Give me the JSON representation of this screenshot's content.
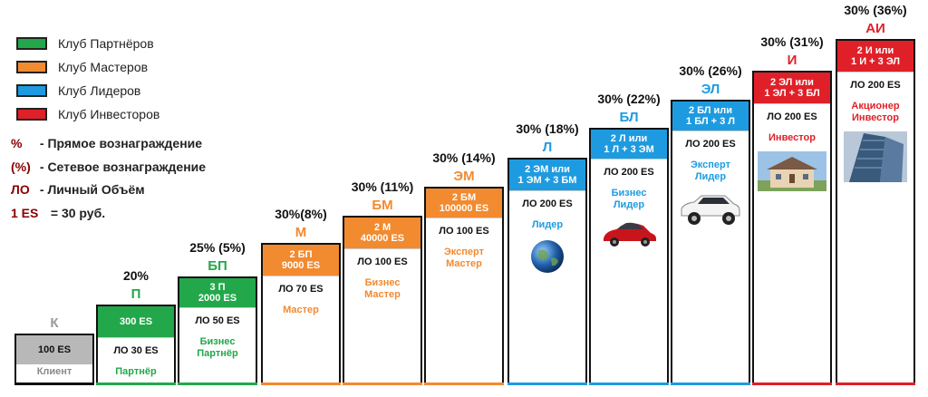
{
  "legend": [
    {
      "label": "Клуб Партнёров",
      "color": "#22a84a"
    },
    {
      "label": "Клуб Мастеров",
      "color": "#f28a30"
    },
    {
      "label": "Клуб Лидеров",
      "color": "#1e9be0"
    },
    {
      "label": "Клуб Инвесторов",
      "color": "#e02028"
    }
  ],
  "definitions": [
    {
      "symbol": "%",
      "text": "- Прямое вознаграждение"
    },
    {
      "symbol": "(%)",
      "text": "- Сетевое вознаграждение"
    },
    {
      "symbol": "ЛО",
      "text": "- Личный Объём"
    },
    {
      "symbol": "1 ES",
      "text": "= 30 руб."
    }
  ],
  "steps": [
    {
      "code": "К",
      "reward": "",
      "header": "100 ES",
      "lo": "",
      "title": "Клиент",
      "color": "#b8b8b8",
      "code_color": "#9a9a9a",
      "title_color": "#888888"
    },
    {
      "code": "П",
      "reward": "20%",
      "header": "300 ES",
      "lo": "ЛО 30 ES",
      "title": "Партнёр",
      "color": "#22a84a",
      "code_color": "#22a84a",
      "title_color": "#22a84a"
    },
    {
      "code": "БП",
      "reward": "25% (5%)",
      "header": "3 П\n2000 ES",
      "lo": "ЛО 50 ES",
      "title": "Бизнес\nПартнёр",
      "color": "#22a84a",
      "code_color": "#22a84a",
      "title_color": "#22a84a"
    },
    {
      "code": "М",
      "reward": "30%(8%)",
      "header": "2 БП\n9000 ES",
      "lo": "ЛО 70 ES",
      "title": "Мастер",
      "color": "#f28a30",
      "code_color": "#f28a30",
      "title_color": "#f28a30"
    },
    {
      "code": "БМ",
      "reward": "30% (11%)",
      "header": "2 М\n40000 ES",
      "lo": "ЛО 100 ES",
      "title": "Бизнес\nМастер",
      "color": "#f28a30",
      "code_color": "#f28a30",
      "title_color": "#f28a30"
    },
    {
      "code": "ЭМ",
      "reward": "30% (14%)",
      "header": "2 БМ\n100000 ES",
      "lo": "ЛО 100 ES",
      "title": "Эксперт\nМастер",
      "color": "#f28a30",
      "code_color": "#f28a30",
      "title_color": "#f28a30"
    },
    {
      "code": "Л",
      "reward": "30% (18%)",
      "header": "2 ЭМ или\n1 ЭМ + 3 БМ",
      "lo": "ЛО 200 ES",
      "title": "Лидер",
      "color": "#1e9be0",
      "code_color": "#1e9be0",
      "title_color": "#1e9be0",
      "picture": "globe"
    },
    {
      "code": "БЛ",
      "reward": "30% (22%)",
      "header": "2 Л или\n1 Л + 3 ЭМ",
      "lo": "ЛО 200 ES",
      "title": "Бизнес\nЛидер",
      "color": "#1e9be0",
      "code_color": "#1e9be0",
      "title_color": "#1e9be0",
      "picture": "red-car"
    },
    {
      "code": "ЭЛ",
      "reward": "30% (26%)",
      "header": "2 БЛ или\n1 БЛ + 3 Л",
      "lo": "ЛО 200 ES",
      "title": "Эксперт\nЛидер",
      "color": "#1e9be0",
      "code_color": "#1e9be0",
      "title_color": "#1e9be0",
      "picture": "white-suv"
    },
    {
      "code": "И",
      "reward": "30% (31%)",
      "header": "2 ЭЛ или\n1 ЭЛ + 3 БЛ",
      "lo": "ЛО 200 ES",
      "title": "Инвестор",
      "color": "#e02028",
      "code_color": "#e02028",
      "title_color": "#e02028",
      "picture": "house"
    },
    {
      "code": "АИ",
      "reward": "30% (36%)",
      "header": "2 И или\n1 И + 3 ЭЛ",
      "lo": "ЛО 200 ES",
      "title": "Акционер\nИнвестор",
      "color": "#e02028",
      "code_color": "#e02028",
      "title_color": "#e02028",
      "picture": "skyscraper"
    }
  ]
}
